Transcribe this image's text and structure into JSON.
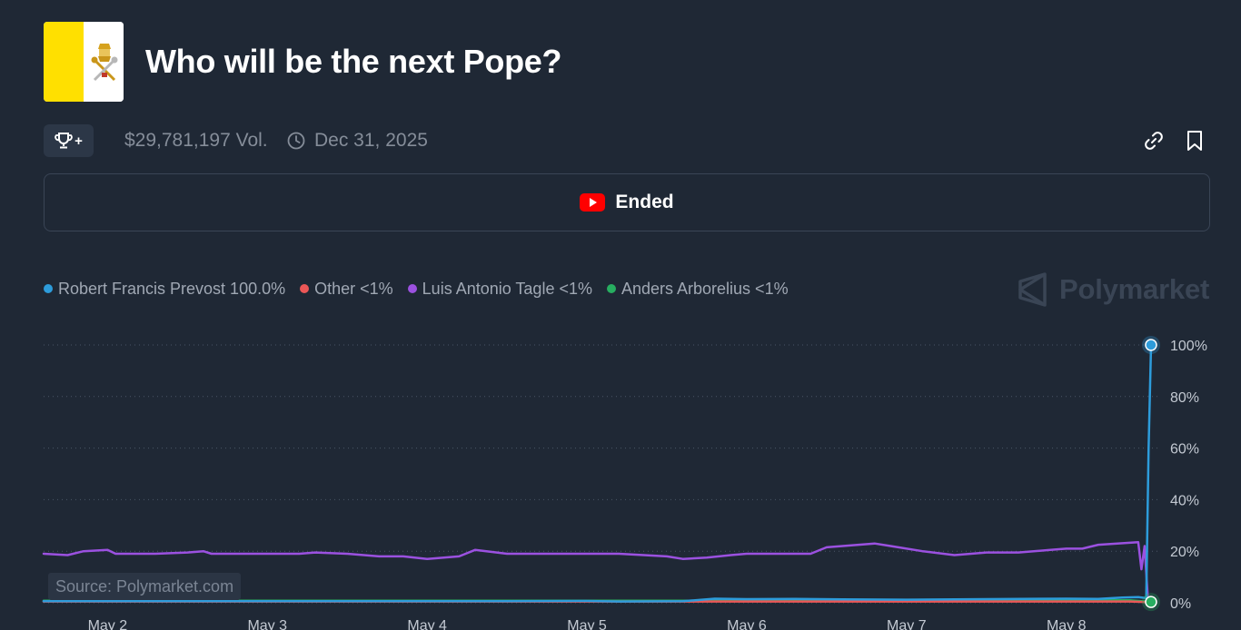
{
  "header": {
    "title": "Who will be the next Pope?",
    "flag_colors": [
      "#ffe000",
      "#ffffff"
    ]
  },
  "meta": {
    "trophy_icon": "trophy-icon",
    "trophy_plus": "+",
    "volume": "$29,781,197 Vol.",
    "end_date": "Dec 31, 2025"
  },
  "actions": {
    "link_icon": "link-icon",
    "bookmark_icon": "bookmark-icon"
  },
  "banner": {
    "label": "Ended",
    "icon": "youtube-icon",
    "icon_color": "#ff0000"
  },
  "legend": [
    {
      "name": "Robert Francis Prevost",
      "value": "100.0%",
      "color": "#2d9cdb"
    },
    {
      "name": "Other",
      "value": "<1%",
      "color": "#eb5757"
    },
    {
      "name": "Luis Antonio Tagle",
      "value": "<1%",
      "color": "#9b51e0"
    },
    {
      "name": "Anders Arborelius",
      "value": "<1%",
      "color": "#27ae60"
    }
  ],
  "watermark": "Polymarket",
  "source": "Source: Polymarket.com",
  "chart_data": {
    "type": "line",
    "title": "",
    "xlabel": "",
    "ylabel": "",
    "x_ticks": [
      "May 2",
      "May 3",
      "May 4",
      "May 5",
      "May 6",
      "May 7",
      "May 8"
    ],
    "x_tick_days": [
      2,
      3,
      4,
      5,
      6,
      7,
      8
    ],
    "x_range_days": [
      1.6,
      8.57
    ],
    "y_ticks": [
      "0%",
      "20%",
      "40%",
      "60%",
      "80%",
      "100%"
    ],
    "ylim": [
      0,
      100
    ],
    "grid": true,
    "legend_position": "top-left",
    "series": [
      {
        "name": "Luis Antonio Tagle",
        "color": "#9b51e0",
        "points": [
          [
            1.6,
            19
          ],
          [
            1.75,
            18.5
          ],
          [
            1.85,
            20
          ],
          [
            2.0,
            20.5
          ],
          [
            2.05,
            19
          ],
          [
            2.3,
            19
          ],
          [
            2.5,
            19.5
          ],
          [
            2.6,
            20
          ],
          [
            2.65,
            19
          ],
          [
            3.0,
            19
          ],
          [
            3.2,
            19
          ],
          [
            3.3,
            19.5
          ],
          [
            3.5,
            19
          ],
          [
            3.7,
            18
          ],
          [
            3.85,
            18
          ],
          [
            4.0,
            17
          ],
          [
            4.2,
            18
          ],
          [
            4.3,
            20.5
          ],
          [
            4.5,
            19
          ],
          [
            4.8,
            19
          ],
          [
            5.0,
            19
          ],
          [
            5.2,
            19
          ],
          [
            5.5,
            18
          ],
          [
            5.6,
            17
          ],
          [
            5.75,
            17.5
          ],
          [
            5.9,
            18.5
          ],
          [
            6.0,
            19
          ],
          [
            6.2,
            19
          ],
          [
            6.4,
            19
          ],
          [
            6.5,
            21.5
          ],
          [
            6.6,
            22
          ],
          [
            6.7,
            22.5
          ],
          [
            6.8,
            23
          ],
          [
            6.9,
            22
          ],
          [
            7.1,
            20
          ],
          [
            7.3,
            18.5
          ],
          [
            7.5,
            19.5
          ],
          [
            7.7,
            19.5
          ],
          [
            7.9,
            20.5
          ],
          [
            8.0,
            21
          ],
          [
            8.1,
            21
          ],
          [
            8.2,
            22.5
          ],
          [
            8.32,
            23
          ],
          [
            8.45,
            23.5
          ],
          [
            8.47,
            13
          ],
          [
            8.49,
            22
          ],
          [
            8.51,
            2
          ],
          [
            8.53,
            0.5
          ]
        ]
      },
      {
        "name": "Anders Arborelius",
        "color": "#27ae60",
        "points": [
          [
            1.6,
            0.8
          ],
          [
            2.0,
            0.8
          ],
          [
            2.5,
            0.8
          ],
          [
            3.0,
            0.8
          ],
          [
            3.5,
            0.8
          ],
          [
            4.0,
            0.8
          ],
          [
            4.5,
            0.8
          ],
          [
            5.0,
            0.8
          ],
          [
            5.5,
            0.8
          ],
          [
            6.0,
            0.8
          ],
          [
            6.5,
            0.8
          ],
          [
            7.0,
            0.9
          ],
          [
            7.5,
            1.0
          ],
          [
            8.0,
            1.0
          ],
          [
            8.4,
            1.0
          ],
          [
            8.53,
            0.3
          ]
        ]
      },
      {
        "name": "Other",
        "color": "#eb5757",
        "points": [
          [
            1.6,
            0.5
          ],
          [
            2.5,
            0.5
          ],
          [
            3.5,
            0.5
          ],
          [
            4.5,
            0.5
          ],
          [
            5.5,
            0.5
          ],
          [
            6.5,
            0.5
          ],
          [
            7.5,
            0.5
          ],
          [
            8.4,
            0.5
          ],
          [
            8.53,
            0.2
          ]
        ]
      },
      {
        "name": "Robert Francis Prevost",
        "color": "#2d9cdb",
        "points": [
          [
            1.6,
            0.6
          ],
          [
            2.0,
            0.6
          ],
          [
            2.5,
            0.6
          ],
          [
            3.0,
            0.6
          ],
          [
            3.5,
            0.6
          ],
          [
            4.0,
            0.6
          ],
          [
            4.5,
            0.6
          ],
          [
            5.0,
            0.7
          ],
          [
            5.2,
            0.5
          ],
          [
            5.6,
            0.6
          ],
          [
            5.8,
            1.6
          ],
          [
            6.0,
            1.4
          ],
          [
            6.3,
            1.5
          ],
          [
            6.6,
            1.3
          ],
          [
            7.0,
            1.2
          ],
          [
            7.5,
            1.4
          ],
          [
            8.0,
            1.6
          ],
          [
            8.2,
            1.5
          ],
          [
            8.35,
            2.0
          ],
          [
            8.45,
            2.2
          ],
          [
            8.5,
            1.8
          ],
          [
            8.515,
            60
          ],
          [
            8.53,
            100
          ]
        ]
      }
    ]
  }
}
